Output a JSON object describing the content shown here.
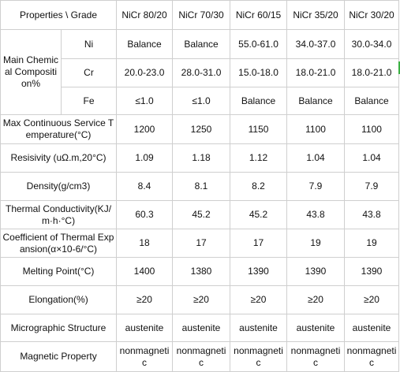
{
  "table": {
    "header": [
      "Properties \\ Grade",
      "NiCr 80/20",
      "NiCr 70/30",
      "NiCr 60/15",
      "NiCr 35/20",
      "NiCr 30/20"
    ],
    "composition": {
      "label": "Main Chemical Composition%",
      "rows": [
        {
          "element": "Ni",
          "values": [
            "Balance",
            "Balance",
            "55.0-61.0",
            "34.0-37.0",
            "30.0-34.0"
          ]
        },
        {
          "element": "Cr",
          "values": [
            "20.0-23.0",
            "28.0-31.0",
            "15.0-18.0",
            "18.0-21.0",
            "18.0-21.0"
          ]
        },
        {
          "element": "Fe",
          "values": [
            "≤1.0",
            "≤1.0",
            "Balance",
            "Balance",
            "Balance"
          ]
        }
      ]
    },
    "rows": [
      {
        "label": "Max Continuous Service Temperature(°C)",
        "values": [
          "1200",
          "1250",
          "1150",
          "1100",
          "1100"
        ]
      },
      {
        "label": "Resisivity (uΩ.m,20°C)",
        "values": [
          "1.09",
          "1.18",
          "1.12",
          "1.04",
          "1.04"
        ]
      },
      {
        "label": "Density(g/cm3)",
        "values": [
          "8.4",
          "8.1",
          "8.2",
          "7.9",
          "7.9"
        ]
      },
      {
        "label": "Thermal Conductivity(KJ/m·h·°C)",
        "values": [
          "60.3",
          "45.2",
          "45.2",
          "43.8",
          "43.8"
        ]
      },
      {
        "label": "Coefficient of Thermal Expansion(α×10-6/°C)",
        "values": [
          "18",
          "17",
          "17",
          "19",
          "19"
        ]
      },
      {
        "label": "Melting Point(°C)",
        "values": [
          "1400",
          "1380",
          "1390",
          "1390",
          "1390"
        ]
      },
      {
        "label": "Elongation(%)",
        "values": [
          "≥20",
          "≥20",
          "≥20",
          "≥20",
          "≥20"
        ]
      },
      {
        "label": "Micrographic Structure",
        "values": [
          "austenite",
          "austenite",
          "austenite",
          "austenite",
          "austenite"
        ]
      },
      {
        "label": "Magnetic Property",
        "values": [
          "nonmagnetic",
          "nonmagnetic",
          "nonmagnetic",
          "nonmagnetic",
          "nonmagnetic"
        ]
      }
    ]
  }
}
